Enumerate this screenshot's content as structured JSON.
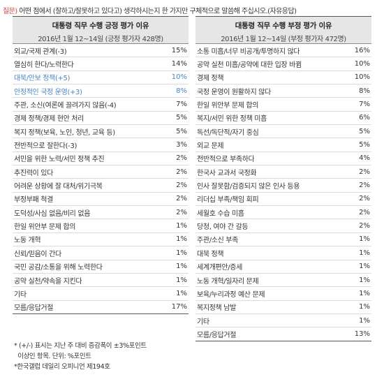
{
  "question": {
    "tag": "질문)",
    "text": " 어떤 점에서 (잘하고/잘못하고 있다고) 생각하시는지 한 가지만 구체적으로 말씀해 주십시오.(자유응답)"
  },
  "positive": {
    "title": "대통령 직무 수행 긍정 평가 이유",
    "subtitle": "2016년 1월 12~14일 (긍정 평가자 428명)",
    "rows": [
      {
        "label": "외교/국제 관계(-3)",
        "value": "15%"
      },
      {
        "label": "열심히 한다/노력한다",
        "value": "14%"
      },
      {
        "label": "대북/안보 정책(+5)",
        "value": "10%",
        "highlight": true
      },
      {
        "label": "안정적인 국정 운영(+3)",
        "value": "8%",
        "highlight": true
      },
      {
        "label": "주관, 소신(여론에 끌려가지 않음(-4)",
        "value": "7%"
      },
      {
        "label": "경제 정책/경제 현안 처리",
        "value": "5%"
      },
      {
        "label": "복지 정책(보육, 노인, 청년, 교육 등)",
        "value": "5%"
      },
      {
        "label": "전반적으로 잘한다(-3)",
        "value": "3%"
      },
      {
        "label": "서민을 위한 노력/서민 정책 추진",
        "value": "2%"
      },
      {
        "label": "추진력이 있다",
        "value": "2%"
      },
      {
        "label": "어려운 상황에 잘 대처/위기극복",
        "value": "2%"
      },
      {
        "label": "부정부패 척결",
        "value": "2%"
      },
      {
        "label": "도덕성/사심 없음/비리 없음",
        "value": "2%"
      },
      {
        "label": "한일 위안부 문제 합의",
        "value": "1%"
      },
      {
        "label": "노동 개혁",
        "value": "1%"
      },
      {
        "label": "신뢰/믿음이 간다",
        "value": "1%"
      },
      {
        "label": "국민 공감/소통을 위해 노력한다",
        "value": "1%"
      },
      {
        "label": "공약 실천/약속을 지킨다",
        "value": "1%"
      },
      {
        "label": "기타",
        "value": "1%"
      },
      {
        "label": "모름/응답거절",
        "value": "17%"
      }
    ]
  },
  "negative": {
    "title": "대통령 직무 수행 부정 평가 이유",
    "subtitle": "2016년 1월 12~14일 (부정 평가자 472명)",
    "rows": [
      {
        "label": "소통 미흡/너무 비공개/투명하지 않다",
        "value": "16%"
      },
      {
        "label": "공약 실천 미흡/공약에 대한 입장 바뀜",
        "value": "10%"
      },
      {
        "label": "경제 정책",
        "value": "10%"
      },
      {
        "label": "국정 운영이 원활하지 않다",
        "value": "8%"
      },
      {
        "label": "한일 위안부 문제 합의",
        "value": "7%"
      },
      {
        "label": "복지/서민 위한 정책 미흡",
        "value": "6%"
      },
      {
        "label": "독선/독단적/자기 중심",
        "value": "5%"
      },
      {
        "label": "외교 문제",
        "value": "5%"
      },
      {
        "label": "전반적으로 부족하다",
        "value": "4%"
      },
      {
        "label": "한국사 교과서 국정화",
        "value": "2%"
      },
      {
        "label": "인사 잘못함/검증되지 않은 인사 등용",
        "value": "2%"
      },
      {
        "label": "리더십 부족/책임 회피",
        "value": "2%"
      },
      {
        "label": "세월호 수습 미흡",
        "value": "2%"
      },
      {
        "label": "당청, 여야 간 갈등",
        "value": "2%"
      },
      {
        "label": "주관/소신 부족",
        "value": "1%"
      },
      {
        "label": "대북 정책",
        "value": "1%"
      },
      {
        "label": "세계개편안/증세",
        "value": "1%"
      },
      {
        "label": "노동 개혁/일자리 문제",
        "value": "1%"
      },
      {
        "label": "보육/누리과정 예산 문제",
        "value": "1%"
      },
      {
        "label": "복지정책 남발",
        "value": "1%"
      },
      {
        "label": "기타",
        "value": "1%"
      },
      {
        "label": "모름/응답거절",
        "value": "13%"
      }
    ]
  },
  "notes": [
    "* (+/-) 표시는 지난 주 대비 증감폭이 ±3%포인트",
    "  이상인 항목. 단위: %포인트",
    "*한국갤럽 데일리 오피니언 제194호"
  ],
  "colors": {
    "question_tag": "#d0463c",
    "highlight": "#4a84c4",
    "header_bg": "#e6e6e6"
  }
}
